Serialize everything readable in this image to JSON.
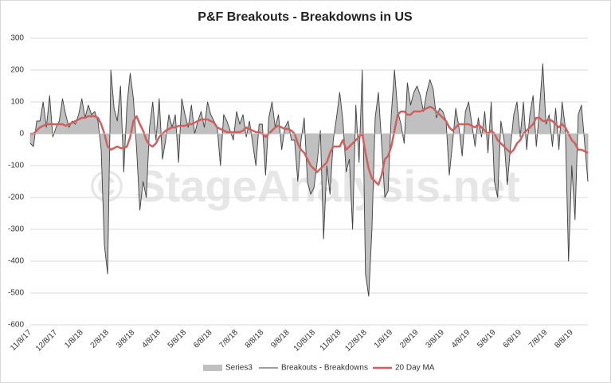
{
  "chart_data": {
    "type": "area-line",
    "title": "P&F Breakouts - Breakdowns in US",
    "watermark": "© StageAnalysis.net",
    "categories": [
      "11/8/17",
      null,
      null,
      null,
      null,
      null,
      null,
      null,
      "12/8/17",
      null,
      null,
      null,
      null,
      null,
      null,
      null,
      "1/8/18",
      null,
      null,
      null,
      null,
      null,
      null,
      null,
      "2/8/18",
      null,
      null,
      null,
      null,
      null,
      null,
      null,
      "3/8/18",
      null,
      null,
      null,
      null,
      null,
      null,
      null,
      "4/8/18",
      null,
      null,
      null,
      null,
      null,
      null,
      null,
      "5/8/18",
      null,
      null,
      null,
      null,
      null,
      null,
      null,
      "6/8/18",
      null,
      null,
      null,
      null,
      null,
      null,
      null,
      "7/8/18",
      null,
      null,
      null,
      null,
      null,
      null,
      null,
      "8/8/18",
      null,
      null,
      null,
      null,
      null,
      null,
      null,
      "9/8/18",
      null,
      null,
      null,
      null,
      null,
      null,
      null,
      "10/8/18",
      null,
      null,
      null,
      null,
      null,
      null,
      null,
      "11/8/18",
      null,
      null,
      null,
      null,
      null,
      null,
      null,
      "12/8/18",
      null,
      null,
      null,
      null,
      null,
      null,
      null,
      "1/8/19",
      null,
      null,
      null,
      null,
      null,
      null,
      null,
      "2/8/19",
      null,
      null,
      null,
      null,
      null,
      null,
      null,
      "3/8/19",
      null,
      null,
      null,
      null,
      null,
      null,
      null,
      "4/8/19",
      null,
      null,
      null,
      null,
      null,
      null,
      null,
      "5/8/19",
      null,
      null,
      null,
      null,
      null,
      null,
      null,
      "6/8/19",
      null,
      null,
      null,
      null,
      null,
      null,
      null,
      "7/8/19",
      null,
      null,
      null,
      null,
      null,
      null,
      null,
      "8/8/19",
      null,
      null,
      null,
      null,
      null
    ],
    "series": [
      {
        "name": "Series3",
        "kind": "area",
        "color": "#c0c0c0",
        "values": [
          -30,
          -40,
          40,
          40,
          100,
          20,
          120,
          -10,
          20,
          40,
          110,
          60,
          20,
          40,
          30,
          60,
          110,
          50,
          90,
          60,
          70,
          40,
          -50,
          -350,
          -440,
          200,
          80,
          40,
          150,
          -120,
          90,
          190,
          110,
          -50,
          -240,
          -150,
          -200,
          20,
          100,
          -20,
          110,
          -80,
          -20,
          60,
          20,
          60,
          -90,
          110,
          60,
          20,
          90,
          0,
          40,
          70,
          20,
          100,
          60,
          40,
          20,
          -100,
          60,
          40,
          10,
          -20,
          70,
          30,
          60,
          -10,
          40,
          -30,
          -100,
          30,
          30,
          -130,
          50,
          100,
          20,
          60,
          -50,
          20,
          40,
          -20,
          -20,
          -150,
          -20,
          50,
          -150,
          -190,
          -170,
          -90,
          10,
          -330,
          -100,
          -190,
          -20,
          50,
          130,
          40,
          -120,
          -80,
          -300,
          90,
          -90,
          200,
          -440,
          -510,
          -300,
          50,
          130,
          -30,
          -200,
          -180,
          60,
          200,
          70,
          30,
          -30,
          160,
          90,
          130,
          150,
          120,
          70,
          130,
          170,
          140,
          50,
          80,
          70,
          40,
          -130,
          -30,
          80,
          20,
          -70,
          70,
          100,
          30,
          -40,
          50,
          -10,
          70,
          -60,
          100,
          -150,
          -200,
          40,
          -20,
          -160,
          -40,
          60,
          100,
          -10,
          100,
          -50,
          60,
          120,
          -40,
          80,
          220,
          30,
          60,
          -40,
          80,
          -50,
          100,
          20,
          -400,
          -100,
          -270,
          60,
          90,
          -30,
          -150
        ]
      },
      {
        "name": "Breakouts - Breakdowns",
        "kind": "line",
        "color": "#404040",
        "values": [
          -30,
          -40,
          40,
          40,
          100,
          20,
          120,
          -10,
          20,
          40,
          110,
          60,
          20,
          40,
          30,
          60,
          110,
          50,
          90,
          60,
          70,
          40,
          -50,
          -350,
          -440,
          200,
          80,
          40,
          150,
          -120,
          90,
          190,
          110,
          -50,
          -240,
          -150,
          -200,
          20,
          100,
          -20,
          110,
          -80,
          -20,
          60,
          20,
          60,
          -90,
          110,
          60,
          20,
          90,
          0,
          40,
          70,
          20,
          100,
          60,
          40,
          20,
          -100,
          60,
          40,
          10,
          -20,
          70,
          30,
          60,
          -10,
          40,
          -30,
          -100,
          30,
          30,
          -130,
          50,
          100,
          20,
          60,
          -50,
          20,
          40,
          -20,
          -20,
          -150,
          -20,
          50,
          -150,
          -190,
          -170,
          -90,
          10,
          -330,
          -100,
          -190,
          -20,
          50,
          130,
          40,
          -120,
          -80,
          -300,
          90,
          -90,
          200,
          -440,
          -510,
          -300,
          50,
          130,
          -30,
          -200,
          -180,
          60,
          200,
          70,
          30,
          -30,
          160,
          90,
          130,
          150,
          120,
          70,
          130,
          170,
          140,
          50,
          80,
          70,
          40,
          -130,
          -30,
          80,
          20,
          -70,
          70,
          100,
          30,
          -40,
          50,
          -10,
          70,
          -60,
          100,
          -150,
          -200,
          40,
          -20,
          -160,
          -40,
          60,
          100,
          -10,
          100,
          -50,
          60,
          120,
          -40,
          80,
          220,
          30,
          60,
          -40,
          80,
          -50,
          100,
          20,
          -400,
          -100,
          -270,
          60,
          90,
          -30,
          -150
        ]
      },
      {
        "name": "20 Day MA",
        "kind": "line",
        "color": "#d0605e",
        "values": [
          0,
          0,
          10,
          20,
          25,
          30,
          30,
          30,
          30,
          30,
          30,
          25,
          30,
          35,
          40,
          45,
          50,
          50,
          55,
          55,
          55,
          50,
          30,
          0,
          -40,
          -50,
          -45,
          -40,
          -45,
          -45,
          -40,
          -10,
          40,
          55,
          30,
          10,
          -20,
          -35,
          -40,
          -30,
          -10,
          0,
          10,
          15,
          20,
          20,
          25,
          25,
          25,
          30,
          30,
          35,
          40,
          45,
          45,
          45,
          40,
          35,
          20,
          15,
          10,
          5,
          5,
          5,
          5,
          5,
          10,
          20,
          15,
          10,
          5,
          5,
          0,
          -10,
          0,
          10,
          20,
          25,
          20,
          15,
          15,
          10,
          0,
          -30,
          -50,
          -60,
          -80,
          -100,
          -110,
          -120,
          -110,
          -100,
          -90,
          -60,
          -40,
          -40,
          -40,
          -20,
          -50,
          -40,
          -30,
          -20,
          -10,
          0,
          -60,
          -110,
          -140,
          -150,
          -160,
          -130,
          -80,
          -70,
          -40,
          10,
          60,
          70,
          70,
          60,
          60,
          70,
          70,
          70,
          75,
          80,
          85,
          80,
          70,
          60,
          50,
          40,
          20,
          10,
          20,
          30,
          30,
          30,
          30,
          25,
          20,
          30,
          20,
          10,
          0,
          10,
          0,
          -20,
          -30,
          -40,
          -50,
          -60,
          -50,
          -30,
          -20,
          0,
          10,
          20,
          30,
          50,
          50,
          40,
          40,
          45,
          40,
          30,
          20,
          30,
          20,
          0,
          -20,
          -30,
          -50,
          -50,
          -55,
          -60
        ]
      }
    ],
    "ylim": [
      -600,
      300
    ],
    "yticks": [
      -600,
      -500,
      -400,
      -300,
      -200,
      -100,
      0,
      100,
      200,
      300
    ],
    "grid": true,
    "legend": "bottom"
  }
}
